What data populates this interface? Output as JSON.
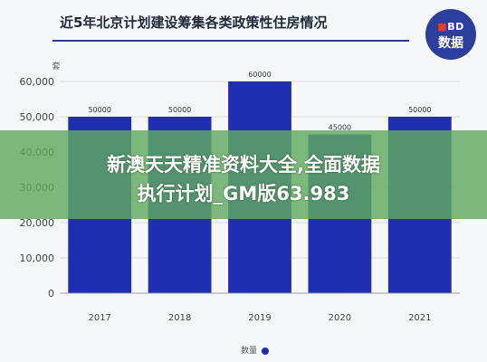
{
  "header": {
    "title": "近5年北京计划建设筹集各类政策性住房情况",
    "logo_line1": "BD",
    "logo_line1_mark": "■",
    "logo_line2": "数据"
  },
  "banner": {
    "line1": "新澳天天精准资料大全,全面数据",
    "line2": "执行计划_GM版63.983"
  },
  "chart_data": {
    "type": "bar",
    "unit_label": "套",
    "categories": [
      "2017",
      "2018",
      "2019",
      "2020",
      "2021"
    ],
    "series": [
      {
        "name": "数量",
        "values": [
          50000,
          50000,
          60000,
          45000,
          50000
        ]
      }
    ],
    "data_labels": [
      "50000",
      "50000",
      "60000",
      "45000",
      "50000"
    ],
    "ylim": [
      0,
      60000
    ],
    "yticks": [
      0,
      10000,
      20000,
      30000,
      40000,
      50000,
      60000
    ],
    "ytick_labels": [
      "0",
      "10,000",
      "20,000",
      "30,000",
      "40,000",
      "50,000",
      "60,000"
    ],
    "bar_color": "#1f2fb0",
    "grid": true,
    "legend_position": "bottom-center"
  }
}
